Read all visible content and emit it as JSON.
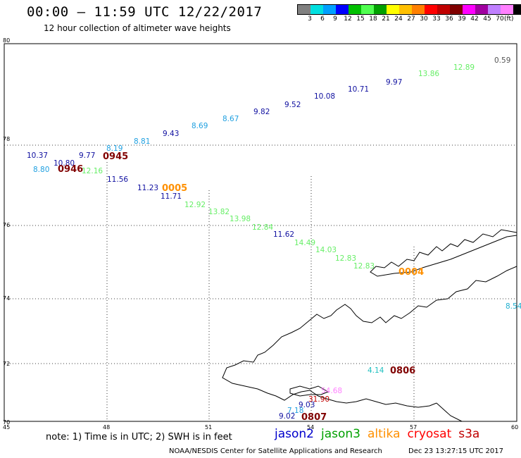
{
  "header": {
    "title": "00:00 – 11:59 UTC 12/22/2017",
    "subtitle": "12 hour collection of altimeter wave heights"
  },
  "colorbar": {
    "colors": [
      "#808080",
      "#00e0e0",
      "#00a0ff",
      "#0000ff",
      "#00c000",
      "#50ff50",
      "#00a000",
      "#ffff00",
      "#ffc000",
      "#ff8000",
      "#ff0000",
      "#c00000",
      "#800000",
      "#ff00ff",
      "#a000a0",
      "#c080ff",
      "#ff80ff",
      "#000000"
    ],
    "labels": [
      "3",
      "6",
      "9",
      "12",
      "15",
      "18",
      "21",
      "24",
      "27",
      "30",
      "33",
      "36",
      "39",
      "42",
      "45",
      "70"
    ],
    "unit": "(ft)"
  },
  "axes": {
    "lat_ticks": [
      "80",
      "78",
      "76",
      "74",
      "72",
      "70"
    ],
    "lon_ticks": [
      "45",
      "48",
      "51",
      "54",
      "57",
      "60"
    ]
  },
  "observations": [
    {
      "t": "0.59",
      "c": "#555555"
    },
    {
      "t": "12.89",
      "c": "#66ee66"
    },
    {
      "t": "13.86",
      "c": "#66ee66"
    },
    {
      "t": "9.97",
      "c": "#1010a0"
    },
    {
      "t": "10.71",
      "c": "#1010a0"
    },
    {
      "t": "10.08",
      "c": "#1010a0"
    },
    {
      "t": "9.52",
      "c": "#1010a0"
    },
    {
      "t": "9.82",
      "c": "#1010a0"
    },
    {
      "t": "8.67",
      "c": "#20a0e0"
    },
    {
      "t": "8.69",
      "c": "#20a0e0"
    },
    {
      "t": "9.43",
      "c": "#1010a0"
    },
    {
      "t": "8.81",
      "c": "#20a0e0"
    },
    {
      "t": "8.19",
      "c": "#20a0e0"
    },
    {
      "t": "9.77",
      "c": "#1010a0"
    },
    {
      "t": "10.37",
      "c": "#1010a0"
    },
    {
      "t": "10.80",
      "c": "#1010a0"
    },
    {
      "t": "8.80",
      "c": "#20a0e0"
    },
    {
      "t": "12.16",
      "c": "#66ee66"
    },
    {
      "t": "11.56",
      "c": "#1010a0"
    },
    {
      "t": "11.23",
      "c": "#1010a0"
    },
    {
      "t": "11.71",
      "c": "#1010a0"
    },
    {
      "t": "12.92",
      "c": "#66ee66"
    },
    {
      "t": "13.82",
      "c": "#66ee66"
    },
    {
      "t": "13.98",
      "c": "#66ee66"
    },
    {
      "t": "12.84",
      "c": "#66ee66"
    },
    {
      "t": "11.62",
      "c": "#1010a0"
    },
    {
      "t": "14.49",
      "c": "#66ee66"
    },
    {
      "t": "14.03",
      "c": "#66ee66"
    },
    {
      "t": "12.83",
      "c": "#66ee66"
    },
    {
      "t": "12.83",
      "c": "#66ee66"
    },
    {
      "t": "8.54",
      "c": "#20b0d0"
    },
    {
      "t": "4.14",
      "c": "#20c0c0"
    },
    {
      "t": "54.68",
      "c": "#ff80ff"
    },
    {
      "t": "31.90",
      "c": "#c00000"
    },
    {
      "t": "9.03",
      "c": "#1010a0"
    },
    {
      "t": "7.18",
      "c": "#20a0e0"
    },
    {
      "t": "9.02",
      "c": "#1010a0"
    }
  ],
  "times": [
    {
      "t": "0945",
      "c": "#800000"
    },
    {
      "t": "0946",
      "c": "#800000"
    },
    {
      "t": "0005",
      "c": "#ff9000"
    },
    {
      "t": "0004",
      "c": "#ff9000"
    },
    {
      "t": "0806",
      "c": "#800000"
    },
    {
      "t": "0807",
      "c": "#800000"
    }
  ],
  "footer": {
    "note": "note:  1) Time is in UTC;  2) SWH is in feet",
    "satellites": [
      {
        "name": "jason2",
        "color": "#0000cc"
      },
      {
        "name": "jason3",
        "color": "#00a000"
      },
      {
        "name": "altika",
        "color": "#ff9000"
      },
      {
        "name": "cryosat",
        "color": "#ff0000"
      },
      {
        "name": "s3a",
        "color": "#c00000"
      }
    ],
    "credit": "NOAA/NESDIS Center for Satellite Applications and Research",
    "timestamp": "Dec 23 13:27:15 UTC 2017"
  }
}
